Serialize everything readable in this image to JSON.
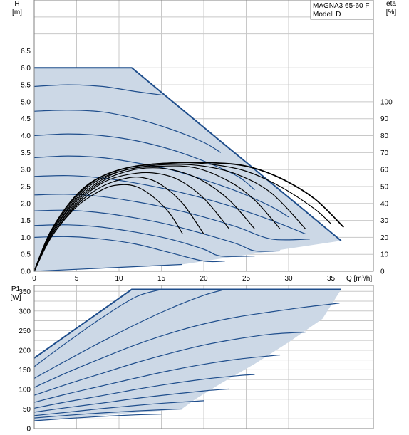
{
  "chart_data": [
    {
      "type": "line",
      "model_label_line1": "MAGNA3 65-60 F",
      "model_label_line2": "Modell D",
      "xlabel": "Q [m³/h]",
      "ylabel_line1": "H",
      "ylabel_line2": "[m]",
      "y2label_line1": "eta",
      "y2label_line2": "[%]",
      "xlim": [
        0,
        40
      ],
      "ylim": [
        0,
        8
      ],
      "y2lim": [
        0,
        160
      ],
      "xticks": [
        "0",
        "5",
        "10",
        "15",
        "20",
        "25",
        "30",
        "35"
      ],
      "yticks": [
        "0.0",
        "0.5",
        "1.0",
        "1.5",
        "2.0",
        "2.5",
        "3.0",
        "3.5",
        "4.0",
        "4.5",
        "5.0",
        "5.5",
        "6.0",
        "6.5"
      ],
      "y2ticks": [
        "0",
        "10",
        "20",
        "30",
        "40",
        "50",
        "60",
        "70",
        "80",
        "90",
        "100"
      ],
      "grid": true,
      "operating_area": [
        [
          0,
          6.0
        ],
        [
          11.5,
          6.0
        ],
        [
          36.2,
          0.9
        ],
        [
          17.4,
          0.2
        ],
        [
          0,
          0
        ],
        [
          0,
          6.0
        ]
      ],
      "head_curves": [
        {
          "values": [
            [
              0,
              6.0
            ],
            [
              4,
              6.0
            ],
            [
              8,
              6.0
            ],
            [
              11.5,
              6.0
            ]
          ]
        },
        {
          "values": [
            [
              0,
              5.45
            ],
            [
              4,
              5.5
            ],
            [
              8,
              5.45
            ],
            [
              12,
              5.3
            ],
            [
              15,
              5.2
            ]
          ]
        },
        {
          "values": [
            [
              0,
              4.72
            ],
            [
              4,
              4.75
            ],
            [
              8,
              4.7
            ],
            [
              12,
              4.5
            ],
            [
              16,
              4.2
            ],
            [
              20,
              3.8
            ],
            [
              22,
              3.5
            ]
          ]
        },
        {
          "values": [
            [
              0,
              4.0
            ],
            [
              4,
              4.05
            ],
            [
              8,
              4.0
            ],
            [
              12,
              3.85
            ],
            [
              16,
              3.6
            ],
            [
              20,
              3.25
            ],
            [
              24,
              2.8
            ],
            [
              26,
              2.4
            ]
          ]
        },
        {
          "values": [
            [
              0,
              3.35
            ],
            [
              4,
              3.4
            ],
            [
              8,
              3.35
            ],
            [
              12,
              3.2
            ],
            [
              16,
              3.0
            ],
            [
              20,
              2.7
            ],
            [
              24,
              2.35
            ],
            [
              28,
              1.9
            ],
            [
              30,
              1.6
            ]
          ]
        },
        {
          "values": [
            [
              0,
              2.8
            ],
            [
              4,
              2.82
            ],
            [
              8,
              2.75
            ],
            [
              12,
              2.6
            ],
            [
              16,
              2.4
            ],
            [
              20,
              2.15
            ],
            [
              24,
              1.85
            ],
            [
              28,
              1.5
            ],
            [
              32,
              1.1
            ]
          ]
        },
        {
          "values": [
            [
              0,
              2.25
            ],
            [
              4,
              2.27
            ],
            [
              8,
              2.2
            ],
            [
              12,
              2.05
            ],
            [
              16,
              1.85
            ],
            [
              20,
              1.6
            ],
            [
              24,
              1.3
            ],
            [
              28,
              0.95
            ],
            [
              32.5,
              0.95
            ]
          ]
        },
        {
          "values": [
            [
              0,
              1.78
            ],
            [
              4,
              1.8
            ],
            [
              8,
              1.72
            ],
            [
              12,
              1.57
            ],
            [
              16,
              1.37
            ],
            [
              20,
              1.1
            ],
            [
              24,
              0.8
            ],
            [
              26,
              0.6
            ],
            [
              29,
              0.6
            ]
          ]
        },
        {
          "values": [
            [
              0,
              1.35
            ],
            [
              4,
              1.37
            ],
            [
              8,
              1.3
            ],
            [
              12,
              1.15
            ],
            [
              16,
              0.95
            ],
            [
              20,
              0.65
            ],
            [
              22,
              0.45
            ],
            [
              26,
              0.45
            ]
          ]
        },
        {
          "values": [
            [
              0,
              1.0
            ],
            [
              4,
              1.02
            ],
            [
              8,
              0.95
            ],
            [
              12,
              0.8
            ],
            [
              16,
              0.55
            ],
            [
              20,
              0.3
            ],
            [
              22.5,
              0.3
            ]
          ]
        },
        {
          "values": [
            [
              0,
              0.0
            ],
            [
              17.4,
              0.2
            ]
          ]
        }
      ],
      "eta_curves": [
        {
          "values": [
            [
              0,
              0
            ],
            [
              2,
              20
            ],
            [
              5,
              38
            ],
            [
              8,
              48
            ],
            [
              10,
              51
            ],
            [
              12,
              50
            ],
            [
              14,
              44
            ],
            [
              16,
              34
            ],
            [
              17.5,
              22
            ]
          ]
        },
        {
          "values": [
            [
              0,
              0
            ],
            [
              2,
              20
            ],
            [
              5,
              39
            ],
            [
              8,
              50
            ],
            [
              11,
              55
            ],
            [
              13,
              55
            ],
            [
              15,
              51
            ],
            [
              17.5,
              40
            ],
            [
              20,
              22
            ]
          ]
        },
        {
          "values": [
            [
              0,
              0
            ],
            [
              2,
              21
            ],
            [
              5,
              40
            ],
            [
              8,
              52
            ],
            [
              11,
              57
            ],
            [
              14,
              58
            ],
            [
              17,
              54
            ],
            [
              20,
              43
            ],
            [
              23,
              25
            ]
          ]
        },
        {
          "values": [
            [
              0,
              0
            ],
            [
              2,
              21
            ],
            [
              5,
              41
            ],
            [
              8,
              53
            ],
            [
              11,
              59
            ],
            [
              14,
              61
            ],
            [
              17,
              59
            ],
            [
              20,
              53
            ],
            [
              23,
              42
            ],
            [
              26,
              25
            ]
          ]
        },
        {
          "values": [
            [
              0,
              0
            ],
            [
              2,
              22
            ],
            [
              5,
              42
            ],
            [
              8,
              54
            ],
            [
              11,
              60
            ],
            [
              15,
              62
            ],
            [
              19,
              61
            ],
            [
              23,
              53
            ],
            [
              26,
              42
            ],
            [
              29,
              25
            ]
          ]
        },
        {
          "values": [
            [
              0,
              0
            ],
            [
              2,
              22
            ],
            [
              5,
              43
            ],
            [
              8,
              55
            ],
            [
              12,
              61
            ],
            [
              16,
              63
            ],
            [
              20,
              62
            ],
            [
              24,
              57
            ],
            [
              28,
              46
            ],
            [
              32,
              25
            ]
          ]
        },
        {
          "values": [
            [
              0,
              0
            ],
            [
              2,
              23
            ],
            [
              5,
              44
            ],
            [
              8,
              56
            ],
            [
              12,
              62
            ],
            [
              17,
              64
            ],
            [
              21,
              63
            ],
            [
              25,
              59
            ],
            [
              29,
              50
            ],
            [
              33,
              37
            ],
            [
              35,
              28
            ]
          ]
        },
        {
          "values": [
            [
              0,
              0
            ],
            [
              2,
              24
            ],
            [
              5,
              45
            ],
            [
              8,
              56
            ],
            [
              12,
              62
            ],
            [
              17,
              64
            ],
            [
              21,
              64
            ],
            [
              25,
              62
            ],
            [
              29,
              55
            ],
            [
              33,
              43
            ],
            [
              36.5,
              26
            ]
          ],
          "max": true
        }
      ]
    },
    {
      "type": "line",
      "ylabel_line1": "P1",
      "ylabel_line2": "[W]",
      "xlim": [
        0,
        40
      ],
      "ylim": [
        0,
        365
      ],
      "yticks": [
        "0",
        "50",
        "100",
        "150",
        "200",
        "250",
        "300",
        "350"
      ],
      "grid": true,
      "power_area": [
        [
          0,
          180
        ],
        [
          11.5,
          355
        ],
        [
          36.2,
          355
        ],
        [
          34,
          280
        ],
        [
          30,
          220
        ],
        [
          26,
          165
        ],
        [
          22,
          115
        ],
        [
          19,
          75
        ],
        [
          17.4,
          50
        ],
        [
          0,
          20
        ],
        [
          0,
          180
        ]
      ],
      "power_curves": [
        {
          "values": [
            [
              0,
              180
            ],
            [
              11.5,
              355
            ]
          ]
        },
        {
          "values": [
            [
              0,
              158
            ],
            [
              4,
              222
            ],
            [
              8,
              283
            ],
            [
              12,
              336
            ],
            [
              15,
              355
            ]
          ]
        },
        {
          "values": [
            [
              0,
              128
            ],
            [
              4,
              176
            ],
            [
              8,
              222
            ],
            [
              12,
              266
            ],
            [
              16,
              306
            ],
            [
              20,
              340
            ],
            [
              22.5,
              355
            ]
          ]
        },
        {
          "values": [
            [
              0,
              105
            ],
            [
              4,
              144
            ],
            [
              8,
              180
            ],
            [
              12,
              214
            ],
            [
              16,
              243
            ],
            [
              20,
              267
            ],
            [
              24,
              285
            ],
            [
              28,
              298
            ],
            [
              32,
              310
            ],
            [
              36,
              320
            ]
          ]
        },
        {
          "values": [
            [
              0,
              85
            ],
            [
              4,
              114
            ],
            [
              8,
              141
            ],
            [
              12,
              168
            ],
            [
              16,
              192
            ],
            [
              20,
              213
            ],
            [
              24,
              229
            ],
            [
              28,
              241
            ],
            [
              32,
              246
            ]
          ]
        },
        {
          "values": [
            [
              0,
              67
            ],
            [
              4,
              89
            ],
            [
              8,
              109
            ],
            [
              12,
              129
            ],
            [
              16,
              148
            ],
            [
              20,
              164
            ],
            [
              24,
              177
            ],
            [
              28,
              186
            ],
            [
              29,
              188
            ]
          ]
        },
        {
          "values": [
            [
              0,
              52
            ],
            [
              4,
              69
            ],
            [
              8,
              84
            ],
            [
              12,
              100
            ],
            [
              16,
              114
            ],
            [
              20,
              126
            ],
            [
              24,
              135
            ],
            [
              26,
              138
            ]
          ]
        },
        {
          "values": [
            [
              0,
              42
            ],
            [
              4,
              54
            ],
            [
              8,
              65
            ],
            [
              12,
              77
            ],
            [
              16,
              87
            ],
            [
              20,
              96
            ],
            [
              23,
              101
            ]
          ]
        },
        {
          "values": [
            [
              0,
              33
            ],
            [
              4,
              42
            ],
            [
              8,
              51
            ],
            [
              12,
              59
            ],
            [
              16,
              66
            ],
            [
              20,
              71
            ]
          ]
        },
        {
          "values": [
            [
              0,
              27
            ],
            [
              4,
              34
            ],
            [
              8,
              40
            ],
            [
              12,
              45
            ],
            [
              15,
              48
            ],
            [
              17.4,
              50
            ]
          ]
        },
        {
          "values": [
            [
              0,
              20
            ],
            [
              4,
              26
            ],
            [
              8,
              31
            ],
            [
              12,
              35
            ],
            [
              15,
              37
            ]
          ]
        }
      ]
    }
  ]
}
